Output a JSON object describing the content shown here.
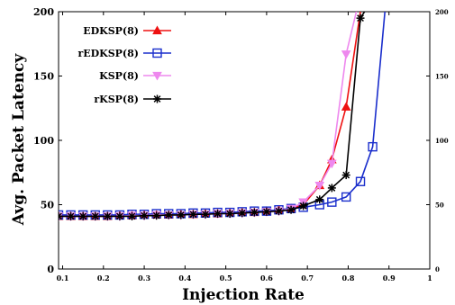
{
  "chart_data": {
    "type": "line",
    "xlabel": "Injection Rate",
    "ylabel": "Avg. Packet Latency",
    "xlim": [
      0.09,
      1.0
    ],
    "ylim": [
      0,
      200
    ],
    "x_ticks": [
      "0.1",
      "0.2",
      "0.3",
      "0.4",
      "0.5",
      "0.6",
      "0.7",
      "0.8",
      "0.9",
      "1"
    ],
    "y_ticks": [
      "0",
      "50",
      "100",
      "150",
      "200"
    ],
    "legend_position": "top-left",
    "grid": false,
    "series": [
      {
        "name": "EDKSP(8)",
        "color": "#ee1111",
        "marker": "triangle-up",
        "points": [
          [
            0.09,
            41
          ],
          [
            0.12,
            41
          ],
          [
            0.15,
            41
          ],
          [
            0.18,
            41
          ],
          [
            0.21,
            41
          ],
          [
            0.24,
            41.5
          ],
          [
            0.27,
            41.5
          ],
          [
            0.3,
            42
          ],
          [
            0.33,
            42
          ],
          [
            0.36,
            42
          ],
          [
            0.39,
            42.5
          ],
          [
            0.42,
            42.5
          ],
          [
            0.45,
            43
          ],
          [
            0.48,
            43
          ],
          [
            0.51,
            43.5
          ],
          [
            0.54,
            44
          ],
          [
            0.57,
            44
          ],
          [
            0.6,
            45
          ],
          [
            0.63,
            46
          ],
          [
            0.66,
            47
          ],
          [
            0.69,
            50
          ],
          [
            0.73,
            65
          ],
          [
            0.76,
            85
          ],
          [
            0.795,
            126
          ],
          [
            0.83,
            200
          ]
        ]
      },
      {
        "name": "rEDKSP(8)",
        "color": "#1a2ecc",
        "marker": "square-open",
        "points": [
          [
            0.09,
            42
          ],
          [
            0.12,
            42
          ],
          [
            0.15,
            42
          ],
          [
            0.18,
            42
          ],
          [
            0.21,
            42
          ],
          [
            0.24,
            42
          ],
          [
            0.27,
            42.5
          ],
          [
            0.3,
            42.5
          ],
          [
            0.33,
            43
          ],
          [
            0.36,
            43
          ],
          [
            0.39,
            43
          ],
          [
            0.42,
            43.5
          ],
          [
            0.45,
            43.5
          ],
          [
            0.48,
            44
          ],
          [
            0.51,
            44
          ],
          [
            0.54,
            44.5
          ],
          [
            0.57,
            45
          ],
          [
            0.6,
            45
          ],
          [
            0.63,
            46
          ],
          [
            0.66,
            47
          ],
          [
            0.69,
            48
          ],
          [
            0.73,
            50
          ],
          [
            0.76,
            52
          ],
          [
            0.795,
            56
          ],
          [
            0.83,
            68
          ],
          [
            0.86,
            95
          ],
          [
            0.89,
            200
          ]
        ]
      },
      {
        "name": "KSP(8)",
        "color": "#ee88ee",
        "marker": "triangle-down",
        "points": [
          [
            0.09,
            41
          ],
          [
            0.12,
            41
          ],
          [
            0.15,
            41
          ],
          [
            0.18,
            41
          ],
          [
            0.21,
            41
          ],
          [
            0.24,
            41
          ],
          [
            0.27,
            41.5
          ],
          [
            0.3,
            41.5
          ],
          [
            0.33,
            42
          ],
          [
            0.36,
            42
          ],
          [
            0.39,
            42
          ],
          [
            0.42,
            42.5
          ],
          [
            0.45,
            42.5
          ],
          [
            0.48,
            43
          ],
          [
            0.51,
            43
          ],
          [
            0.54,
            43.5
          ],
          [
            0.57,
            44
          ],
          [
            0.6,
            44.5
          ],
          [
            0.63,
            45
          ],
          [
            0.66,
            47
          ],
          [
            0.69,
            52
          ],
          [
            0.73,
            65
          ],
          [
            0.76,
            82
          ],
          [
            0.795,
            167
          ],
          [
            0.82,
            200
          ]
        ]
      },
      {
        "name": "rKSP(8)",
        "color": "#000000",
        "marker": "asterisk",
        "points": [
          [
            0.09,
            41
          ],
          [
            0.12,
            41
          ],
          [
            0.15,
            41
          ],
          [
            0.18,
            41
          ],
          [
            0.21,
            41
          ],
          [
            0.24,
            41
          ],
          [
            0.27,
            41
          ],
          [
            0.3,
            41.5
          ],
          [
            0.33,
            41.5
          ],
          [
            0.36,
            42
          ],
          [
            0.39,
            42
          ],
          [
            0.42,
            42.5
          ],
          [
            0.45,
            42.5
          ],
          [
            0.48,
            43
          ],
          [
            0.51,
            43
          ],
          [
            0.54,
            43.5
          ],
          [
            0.57,
            44
          ],
          [
            0.6,
            44.5
          ],
          [
            0.63,
            45
          ],
          [
            0.66,
            46
          ],
          [
            0.69,
            49
          ],
          [
            0.73,
            54
          ],
          [
            0.76,
            63
          ],
          [
            0.795,
            73
          ],
          [
            0.83,
            195
          ],
          [
            0.84,
            200
          ]
        ]
      }
    ]
  }
}
